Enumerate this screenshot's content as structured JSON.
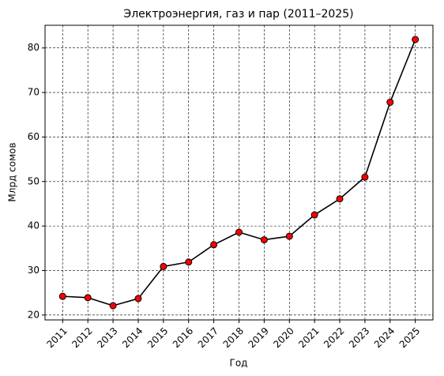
{
  "chart_data": {
    "type": "line",
    "title": "Электроэнергия, газ и пар (2011–2025)",
    "x_label": "Год",
    "y_label": "Млрд сомов",
    "x": [
      2011,
      2012,
      2013,
      2014,
      2015,
      2016,
      2017,
      2018,
      2019,
      2020,
      2021,
      2022,
      2023,
      2024,
      2025
    ],
    "series": [
      {
        "name": "Электроэнергия, газ и пар",
        "color": "#000000",
        "marker_color": "#ff0000",
        "values": [
          24.2,
          23.9,
          22.1,
          23.7,
          30.9,
          31.9,
          35.8,
          38.6,
          36.9,
          37.7,
          42.5,
          46.1,
          51.0,
          67.8,
          81.9
        ]
      }
    ],
    "xlim": [
      2010.3,
      2025.7
    ],
    "xticks": [
      2011,
      2012,
      2013,
      2014,
      2015,
      2016,
      2017,
      2018,
      2019,
      2020,
      2021,
      2022,
      2023,
      2024,
      2025
    ],
    "ylim": [
      18.9,
      85.1
    ],
    "yticks": [
      20,
      30,
      40,
      50,
      60,
      70,
      80
    ],
    "grid": true
  }
}
